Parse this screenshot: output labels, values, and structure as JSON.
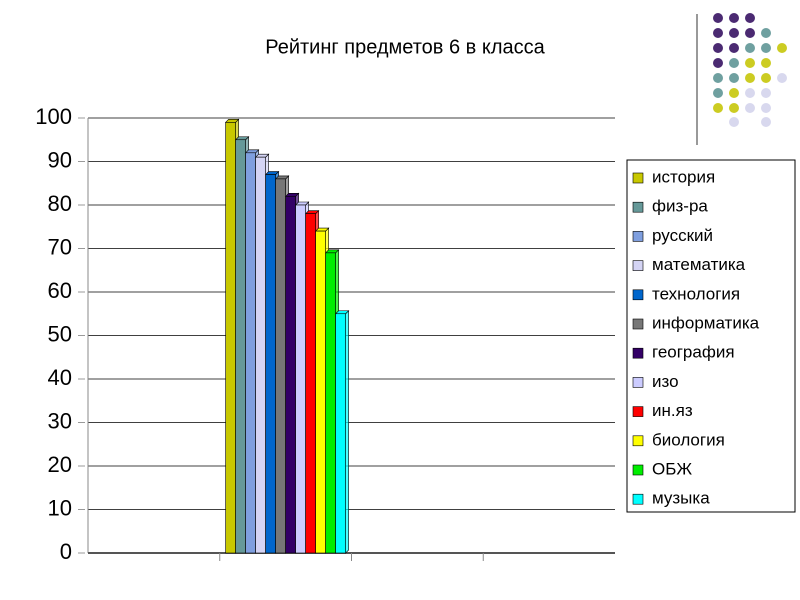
{
  "chart_data": {
    "type": "bar",
    "title": "Рейтинг предметов 6 в класса",
    "categories": [
      null,
      null,
      null,
      null
    ],
    "series": [
      {
        "name": "история",
        "color": "#c8c800",
        "values": [
          null,
          99,
          null,
          null
        ]
      },
      {
        "name": "физ-ра",
        "color": "#669999",
        "values": [
          null,
          95,
          null,
          null
        ]
      },
      {
        "name": "русский",
        "color": "#7f9fdf",
        "values": [
          null,
          92,
          null,
          null
        ]
      },
      {
        "name": "математика",
        "color": "#d4d4f4",
        "values": [
          null,
          91,
          null,
          null
        ]
      },
      {
        "name": "технология",
        "color": "#0066cc",
        "values": [
          null,
          87,
          null,
          null
        ]
      },
      {
        "name": "информатика",
        "color": "#777777",
        "values": [
          null,
          86,
          null,
          null
        ]
      },
      {
        "name": "география",
        "color": "#330066",
        "values": [
          null,
          82,
          null,
          null
        ]
      },
      {
        "name": "изо",
        "color": "#ccccff",
        "values": [
          null,
          80,
          null,
          null
        ]
      },
      {
        "name": "ин.яз",
        "color": "#ff0000",
        "values": [
          null,
          78,
          null,
          null
        ]
      },
      {
        "name": "биология",
        "color": "#ffff00",
        "values": [
          null,
          74,
          null,
          null
        ]
      },
      {
        "name": "ОБЖ",
        "color": "#00ee00",
        "values": [
          null,
          69,
          null,
          null
        ]
      },
      {
        "name": "музыка",
        "color": "#00ffff",
        "values": [
          null,
          55,
          null,
          null
        ]
      }
    ],
    "ylim": [
      0,
      100
    ],
    "yticks": [
      0,
      10,
      20,
      30,
      40,
      50,
      60,
      70,
      80,
      90,
      100
    ],
    "grid": true,
    "legend": "right"
  }
}
